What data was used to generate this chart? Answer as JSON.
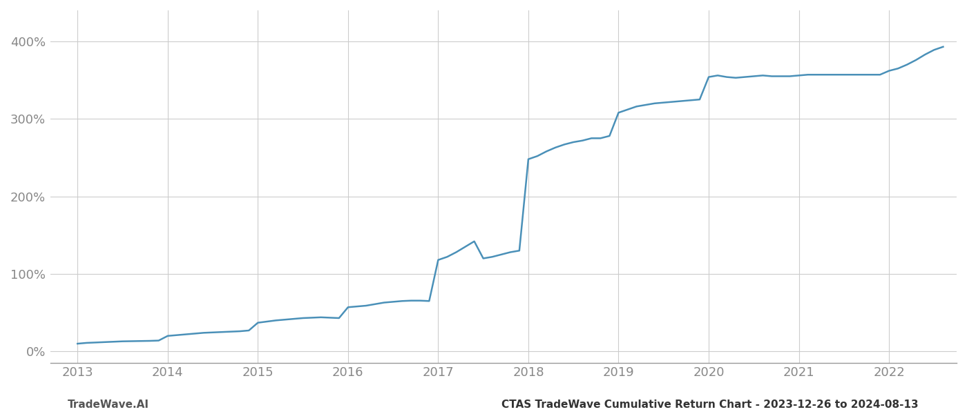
{
  "title_right": "CTAS TradeWave Cumulative Return Chart - 2023-12-26 to 2024-08-13",
  "title_left": "TradeWave.AI",
  "line_color": "#4a90b8",
  "background_color": "#ffffff",
  "grid_color": "#cccccc",
  "x_years": [
    2013,
    2014,
    2015,
    2016,
    2017,
    2018,
    2019,
    2020,
    2021,
    2022
  ],
  "y_ticks": [
    0,
    100,
    200,
    300,
    400
  ],
  "x_data": [
    2013.0,
    2013.1,
    2013.2,
    2013.3,
    2013.4,
    2013.5,
    2013.6,
    2013.7,
    2013.8,
    2013.9,
    2014.0,
    2014.1,
    2014.2,
    2014.3,
    2014.4,
    2014.5,
    2014.6,
    2014.7,
    2014.8,
    2014.9,
    2015.0,
    2015.1,
    2015.2,
    2015.3,
    2015.4,
    2015.5,
    2015.6,
    2015.7,
    2015.8,
    2015.9,
    2016.0,
    2016.1,
    2016.2,
    2016.3,
    2016.4,
    2016.5,
    2016.6,
    2016.7,
    2016.8,
    2016.9,
    2017.0,
    2017.1,
    2017.2,
    2017.3,
    2017.4,
    2017.5,
    2017.6,
    2017.7,
    2017.8,
    2017.9,
    2018.0,
    2018.1,
    2018.2,
    2018.3,
    2018.4,
    2018.5,
    2018.6,
    2018.7,
    2018.8,
    2018.9,
    2019.0,
    2019.1,
    2019.2,
    2019.3,
    2019.4,
    2019.5,
    2019.6,
    2019.7,
    2019.8,
    2019.9,
    2020.0,
    2020.1,
    2020.2,
    2020.3,
    2020.4,
    2020.5,
    2020.6,
    2020.7,
    2020.8,
    2020.9,
    2021.0,
    2021.1,
    2021.2,
    2021.3,
    2021.4,
    2021.5,
    2021.6,
    2021.7,
    2021.8,
    2021.9,
    2022.0,
    2022.1,
    2022.2,
    2022.3,
    2022.4,
    2022.5,
    2022.6
  ],
  "y_data": [
    10,
    11,
    11.5,
    12,
    12.5,
    13,
    13.2,
    13.4,
    13.6,
    14,
    20,
    21,
    22,
    23,
    24,
    24.5,
    25,
    25.5,
    26,
    27,
    37,
    38.5,
    40,
    41,
    42,
    43,
    43.5,
    44,
    43.5,
    43,
    57,
    58,
    59,
    61,
    63,
    64,
    65,
    65.5,
    65.5,
    65,
    118,
    122,
    128,
    135,
    142,
    120,
    122,
    125,
    128,
    130,
    248,
    252,
    258,
    263,
    267,
    270,
    272,
    275,
    275,
    278,
    308,
    312,
    316,
    318,
    320,
    321,
    322,
    323,
    324,
    325,
    354,
    356,
    354,
    353,
    354,
    355,
    356,
    355,
    355,
    355,
    356,
    357,
    357,
    357,
    357,
    357,
    357,
    357,
    357,
    357,
    362,
    365,
    370,
    376,
    383,
    389,
    393
  ],
  "xlim": [
    2012.7,
    2022.75
  ],
  "ylim": [
    -15,
    440
  ],
  "figsize": [
    14,
    6
  ],
  "dpi": 100,
  "tick_fontsize": 13,
  "label_fontsize": 11,
  "line_width": 1.8,
  "spine_color": "#999999",
  "text_color_left": "#555555",
  "text_color_right": "#333333"
}
